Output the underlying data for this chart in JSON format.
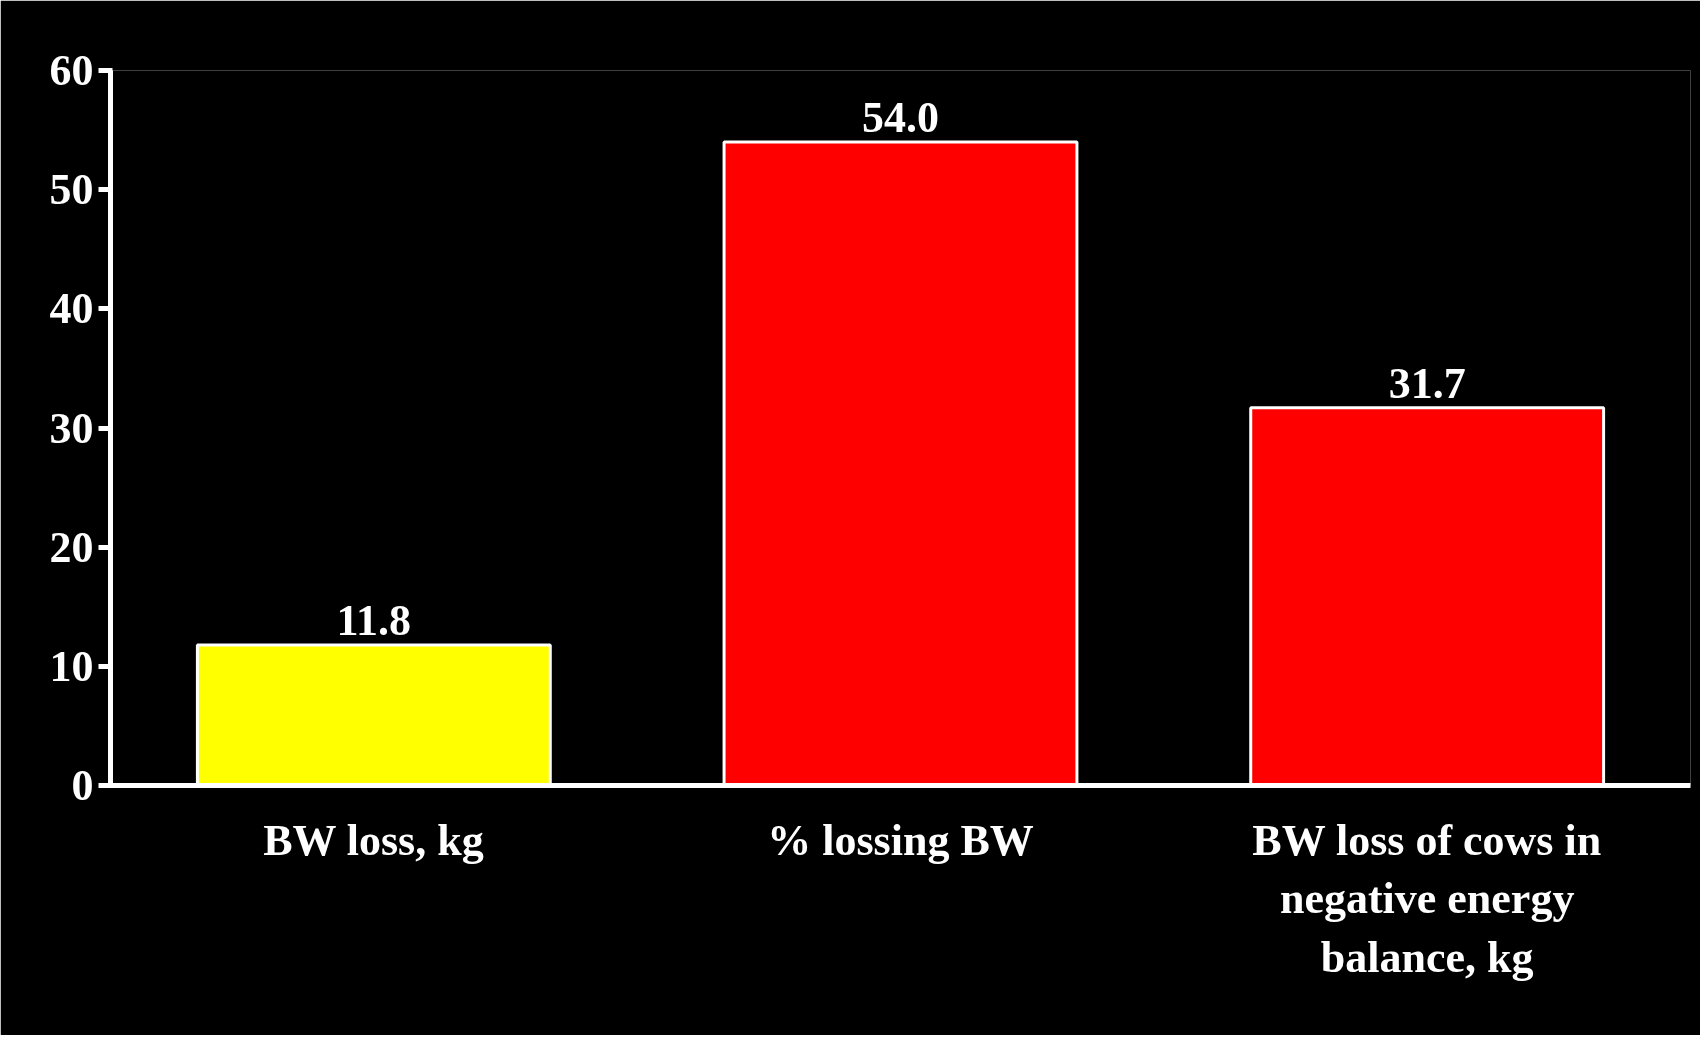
{
  "chart_data": {
    "type": "bar",
    "categories": [
      "BW loss, kg",
      "% lossing BW",
      "BW loss of cows in negative energy balance, kg"
    ],
    "values": [
      11.8,
      54.0,
      31.7
    ],
    "colors": [
      "#ffff00",
      "#ff0000",
      "#ff0000"
    ],
    "value_labels": [
      "11.8",
      "54.0",
      "31.7"
    ],
    "ylim": [
      0,
      60
    ],
    "yticks": [
      0,
      10,
      20,
      30,
      40,
      50,
      60
    ],
    "grid": false
  }
}
